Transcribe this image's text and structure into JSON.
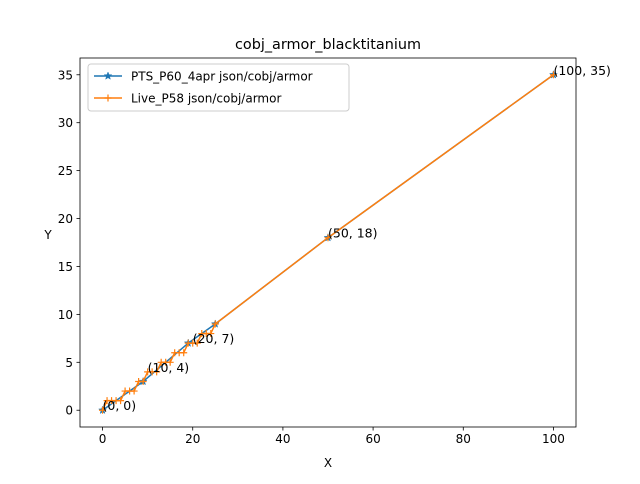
{
  "chart_data": {
    "type": "line",
    "title": "cobj_armor_blacktitanium",
    "xlabel": "X",
    "ylabel": "Y",
    "xlim": [
      -5,
      105
    ],
    "ylim": [
      -1.75,
      36.75
    ],
    "xticks": [
      0,
      20,
      40,
      60,
      80,
      100
    ],
    "yticks": [
      0,
      5,
      10,
      15,
      20,
      25,
      30,
      35
    ],
    "grid": false,
    "legend_position": "upper-left",
    "series": [
      {
        "name": "PTS_P60_4apr json/cobj/armor",
        "color": "#1f77b4",
        "marker": "star",
        "points": [
          [
            0,
            0
          ],
          [
            9,
            3
          ],
          [
            19,
            7
          ],
          [
            25,
            9
          ],
          [
            50,
            18
          ],
          [
            100,
            35
          ]
        ]
      },
      {
        "name": "Live_P58 json/cobj/armor",
        "color": "#ff7f0e",
        "marker": "plus",
        "points": [
          [
            0,
            0
          ],
          [
            1,
            1
          ],
          [
            2,
            1
          ],
          [
            3,
            1
          ],
          [
            4,
            1
          ],
          [
            5,
            2
          ],
          [
            6,
            2
          ],
          [
            7,
            2
          ],
          [
            8,
            3
          ],
          [
            9,
            3
          ],
          [
            10,
            4
          ],
          [
            11,
            4
          ],
          [
            12,
            4
          ],
          [
            13,
            5
          ],
          [
            14,
            5
          ],
          [
            15,
            5
          ],
          [
            16,
            6
          ],
          [
            17,
            6
          ],
          [
            18,
            6
          ],
          [
            19,
            7
          ],
          [
            20,
            7
          ],
          [
            21,
            7
          ],
          [
            22,
            8
          ],
          [
            23,
            8
          ],
          [
            24,
            8
          ],
          [
            25,
            9
          ],
          [
            50,
            18
          ],
          [
            100,
            35
          ]
        ]
      }
    ],
    "annotations": [
      {
        "text": "(0, 0)",
        "x": 0,
        "y": 0
      },
      {
        "text": "(10, 4)",
        "x": 10,
        "y": 4
      },
      {
        "text": "(20, 7)",
        "x": 20,
        "y": 7
      },
      {
        "text": "(50, 18)",
        "x": 50,
        "y": 18
      },
      {
        "text": "(100, 35)",
        "x": 100,
        "y": 35
      }
    ]
  }
}
